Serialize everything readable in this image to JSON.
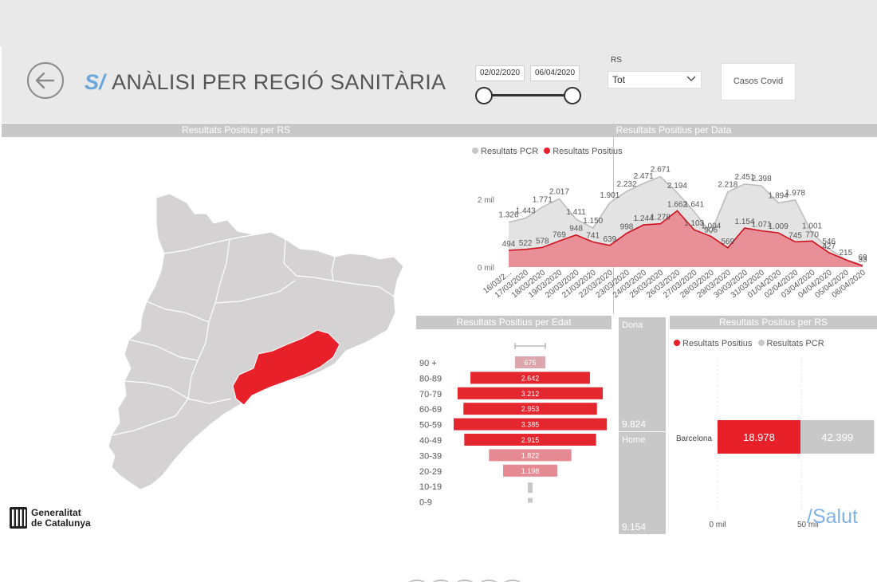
{
  "header": {
    "title_prefix": "S/",
    "title": "ANÀLISI PER REGIÓ SANITÀRIA",
    "date_start": "02/02/2020",
    "date_end": "06/04/2020",
    "rs_label": "RS",
    "rs_value": "Tot",
    "covid_button": "Casos Covid"
  },
  "sections": {
    "map": "Resultats Positius per RS",
    "by_date": "Resultats Positius per Data",
    "by_age": "Resultats Positius per Edat",
    "by_rs": "Resultats Positius per RS"
  },
  "colors": {
    "positive": "#e8202a",
    "pcr": "#c8c8c8",
    "accent": "#6aa6dc",
    "map_land": "#d4d2d3"
  },
  "gender": [
    {
      "label": "Dona",
      "value": "9.824"
    },
    {
      "label": "Home",
      "value": "9.154"
    }
  ],
  "logo": {
    "line1": "Generalitat",
    "line2": "de Catalunya"
  },
  "brand": "/Salut",
  "chart_data": [
    {
      "type": "area",
      "title": "Resultats Positius per Data",
      "legend": "top-left",
      "y_ticks": [
        "0 mil",
        "2 mil"
      ],
      "x": [
        "16/03/2...",
        "17/03/2020",
        "18/03/2020",
        "19/03/2020",
        "20/03/2020",
        "21/03/2020",
        "22/03/2020",
        "23/03/2020",
        "24/03/2020",
        "25/03/2020",
        "26/03/2020",
        "27/03/2020",
        "28/03/2020",
        "29/03/2020",
        "30/03/2020",
        "31/03/2020",
        "01/04/2020",
        "02/04/2020",
        "03/04/2020",
        "04/04/2020",
        "05/04/2020",
        "06/04/2020"
      ],
      "series": [
        {
          "name": "Resultats PCR",
          "values": [
            1326,
            1443,
            1771,
            2017,
            1411,
            1150,
            1901,
            2232,
            2471,
            2671,
            2194,
            1641,
            1004,
            2218,
            2451,
            2398,
            1894,
            1978,
            1001,
            546,
            215,
            69
          ],
          "labels": [
            "1.326",
            "1.443",
            "1.771",
            "2.017",
            "1.411",
            "1.150",
            "1.901",
            "2.232",
            "2.471",
            "2.671",
            "2.194",
            "1.641",
            "1.004",
            "2.218",
            "2.451",
            "2.398",
            "1.894",
            "1.978",
            "1.001",
            "546",
            "215",
            "69"
          ]
        },
        {
          "name": "Resultats Positius",
          "values": [
            494,
            522,
            578,
            769,
            948,
            741,
            639,
            998,
            1244,
            1278,
            1662,
            1103,
            906,
            569,
            1154,
            1071,
            1009,
            745,
            770,
            427,
            215,
            33
          ],
          "labels": [
            "494",
            "522",
            "578",
            "769",
            "948",
            "741",
            "639",
            "998",
            "1.244",
            "1.278",
            "1.662",
            "1.103",
            "906",
            "569",
            "1.154",
            "1.071",
            "1.009",
            "745",
            "770",
            "427",
            "",
            "33"
          ]
        }
      ]
    },
    {
      "type": "bar",
      "title": "Resultats Positius per Edat",
      "orientation": "horizontal-centered",
      "categories": [
        "90 +",
        "80-89",
        "70-79",
        "60-69",
        "50-59",
        "40-49",
        "30-39",
        "20-29",
        "10-19",
        "0-9"
      ],
      "values": [
        675,
        2642,
        3212,
        2953,
        3385,
        2915,
        1822,
        1198,
        140,
        40
      ],
      "labels": [
        "675",
        "2.642",
        "3.212",
        "2.953",
        "3.385",
        "2.915",
        "1.822",
        "1.198",
        "",
        ""
      ]
    },
    {
      "type": "bar",
      "title": "Resultats Positius per RS",
      "orientation": "horizontal-stacked",
      "legend": "top-left",
      "categories": [
        "Barcelona"
      ],
      "series": [
        {
          "name": "Resultats Positius",
          "values": [
            18978
          ],
          "labels": [
            "18.978"
          ]
        },
        {
          "name": "Resultats PCR",
          "values": [
            42399
          ],
          "labels": [
            "42.399"
          ]
        }
      ],
      "x_ticks": [
        "0 mil",
        "50 mil"
      ]
    }
  ]
}
